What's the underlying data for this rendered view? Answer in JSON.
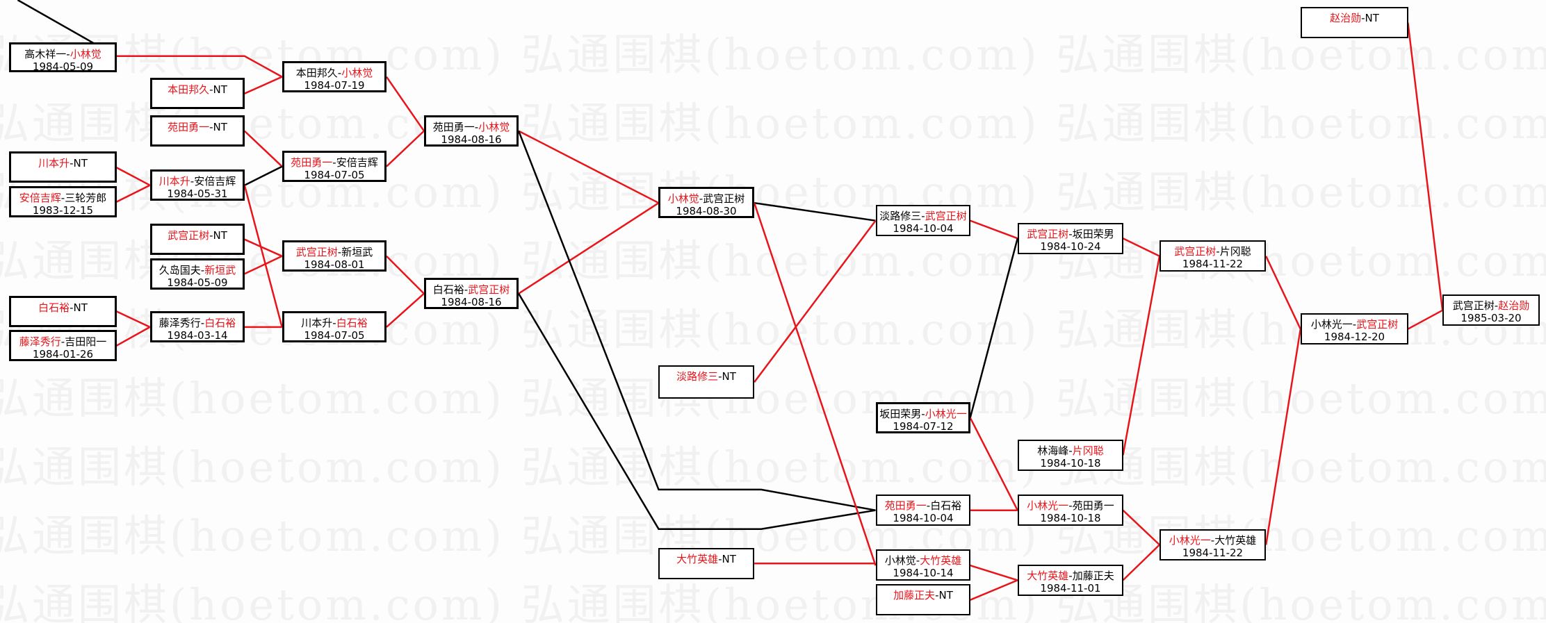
{
  "watermark": "弘通围棋(hoetom.com)",
  "colors": {
    "winner_line": "#e8141a",
    "loser_line": "#000000",
    "winner_text": "#e8141a"
  },
  "matches": [
    {
      "p1": "高木祥一",
      "p2": "小林觉",
      "win": 2,
      "date": "1984-05-09"
    },
    {
      "p1": "川本升",
      "p2": "NT",
      "win": 1,
      "date": ""
    },
    {
      "p1": "安倍吉辉",
      "p2": "三轮芳郎",
      "win": 1,
      "date": "1983-12-15"
    },
    {
      "p1": "白石裕",
      "p2": "NT",
      "win": 1,
      "date": ""
    },
    {
      "p1": "藤泽秀行",
      "p2": "吉田阳一",
      "win": 1,
      "date": "1984-01-26"
    },
    {
      "p1": "本田邦久",
      "p2": "NT",
      "win": 1,
      "date": ""
    },
    {
      "p1": "苑田勇一",
      "p2": "NT",
      "win": 1,
      "date": ""
    },
    {
      "p1": "川本升",
      "p2": "安倍吉辉",
      "win": 1,
      "date": "1984-05-31"
    },
    {
      "p1": "武宫正树",
      "p2": "NT",
      "win": 1,
      "date": ""
    },
    {
      "p1": "久岛国夫",
      "p2": "新垣武",
      "win": 2,
      "date": "1984-05-09"
    },
    {
      "p1": "藤泽秀行",
      "p2": "白石裕",
      "win": 2,
      "date": "1984-03-14"
    },
    {
      "p1": "本田邦久",
      "p2": "小林觉",
      "win": 2,
      "date": "1984-07-19"
    },
    {
      "p1": "苑田勇一",
      "p2": "安倍吉辉",
      "win": 1,
      "date": "1984-07-05"
    },
    {
      "p1": "武宫正树",
      "p2": "新垣武",
      "win": 1,
      "date": "1984-08-01"
    },
    {
      "p1": "川本升",
      "p2": "白石裕",
      "win": 2,
      "date": "1984-07-05"
    },
    {
      "p1": "苑田勇一",
      "p2": "小林觉",
      "win": 2,
      "date": "1984-08-16"
    },
    {
      "p1": "白石裕",
      "p2": "武宫正树",
      "win": 2,
      "date": "1984-08-16"
    },
    {
      "p1": "小林觉",
      "p2": "武宫正树",
      "win": 1,
      "date": "1984-08-30"
    },
    {
      "p1": "淡路修三",
      "p2": "NT",
      "win": 1,
      "date": ""
    },
    {
      "p1": "大竹英雄",
      "p2": "NT",
      "win": 1,
      "date": ""
    },
    {
      "p1": "淡路修三",
      "p2": "武宫正树",
      "win": 2,
      "date": "1984-10-04"
    },
    {
      "p1": "坂田荣男",
      "p2": "小林光一",
      "win": 2,
      "date": "1984-07-12"
    },
    {
      "p1": "苑田勇一",
      "p2": "白石裕",
      "win": 1,
      "date": "1984-10-04"
    },
    {
      "p1": "小林觉",
      "p2": "大竹英雄",
      "win": 2,
      "date": "1984-10-14"
    },
    {
      "p1": "加藤正夫",
      "p2": "NT",
      "win": 1,
      "date": ""
    },
    {
      "p1": "武宫正树",
      "p2": "坂田荣男",
      "win": 1,
      "date": "1984-10-24"
    },
    {
      "p1": "林海峰",
      "p2": "片冈聪",
      "win": 2,
      "date": "1984-10-18"
    },
    {
      "p1": "小林光一",
      "p2": "苑田勇一",
      "win": 1,
      "date": "1984-10-18"
    },
    {
      "p1": "大竹英雄",
      "p2": "加藤正夫",
      "win": 1,
      "date": "1984-11-01"
    },
    {
      "p1": "武宫正树",
      "p2": "片冈聪",
      "win": 1,
      "date": "1984-11-22"
    },
    {
      "p1": "小林光一",
      "p2": "大竹英雄",
      "win": 1,
      "date": "1984-11-22"
    },
    {
      "p1": "赵治勋",
      "p2": "NT",
      "win": 1,
      "date": ""
    },
    {
      "p1": "小林光一",
      "p2": "武宫正树",
      "win": 2,
      "date": "1984-12-20"
    },
    {
      "p1": "武宫正树",
      "p2": "赵治勋",
      "win": 2,
      "date": "1985-03-20"
    }
  ]
}
